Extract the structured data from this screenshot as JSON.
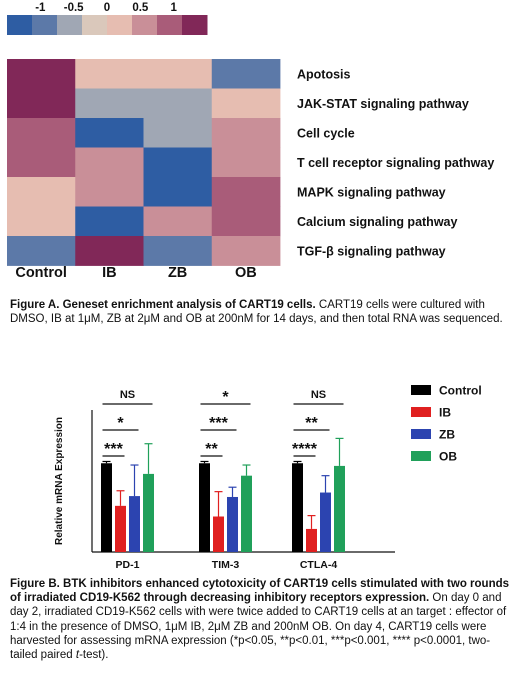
{
  "figure_a": {
    "caption_bold": "Figure A. Geneset enrichment analysis of CART19 cells.",
    "caption_text": " CART19 cells were cultured with DMSO, IB at 1μM, ZB at 2μM and OB at 200nM for 14 days, and then total RNA was sequenced."
  },
  "figure_b": {
    "caption_bold": "Figure B. BTK inhibitors enhanced cytotoxicity of CART19 cells stimulated with two rounds of irradiated CD19-K562 through decreasing inhibitory receptors expression.",
    "caption_text_1": " On day 0 and day 2, irradiated CD19-K562 cells with were twice added to CART19 cells at an target : effector of 1:4 in the presence of DMSO, 1μM IB, 2μM ZB and 200nM OB. On day 4, CART19 cells were harvested for assessing mRNA expression (*p<0.05, **p<0.01, ***p<0.001, **** p<0.0001, two-tailed paired ",
    "caption_italic": "t",
    "caption_text_2": "-test)."
  },
  "chart_data": [
    {
      "type": "heatmap",
      "columns": [
        "Control",
        "IB",
        "ZB",
        "OB"
      ],
      "rows": [
        "Apotosis",
        "JAK-STAT signaling pathway",
        "Cell cycle",
        "T cell receptor signaling pathway",
        "MAPK signaling pathway",
        "Calcium signaling pathway",
        "TGF-β signaling pathway"
      ],
      "values": [
        [
          1.4,
          0.2,
          0.2,
          -1.0
        ],
        [
          1.4,
          -0.5,
          -0.5,
          0.2
        ],
        [
          0.9,
          -1.3,
          -0.5,
          0.7
        ],
        [
          0.9,
          0.4,
          -1.3,
          0.4
        ],
        [
          0.2,
          0.4,
          -1.3,
          0.9
        ],
        [
          0.2,
          -1.3,
          0.7,
          0.9
        ],
        [
          -1.0,
          1.3,
          -1.0,
          0.7
        ]
      ],
      "colorbar": {
        "ticks": [
          "-1",
          "-0.5",
          "0",
          "0.5",
          "1"
        ],
        "colors": [
          "#2e5da3",
          "#5c79a8",
          "#a0a7b4",
          "#dac8bb",
          "#e6bdb1",
          "#c98f98",
          "#a95c79",
          "#812858"
        ],
        "range": [
          -1.5,
          1.5
        ]
      }
    },
    {
      "type": "bar",
      "ylabel": "Relative mRNA Expression",
      "ylim": [
        0,
        1.6
      ],
      "categories": [
        "PD-1",
        "TIM-3",
        "CTLA-4"
      ],
      "series": [
        {
          "name": "Control",
          "color": "#000000",
          "values": [
            1.0,
            1.0,
            1.0
          ],
          "errors": [
            0.02,
            0.02,
            0.02
          ]
        },
        {
          "name": "IB",
          "color": "#e02020",
          "values": [
            0.52,
            0.4,
            0.26
          ],
          "errors": [
            0.17,
            0.28,
            0.15
          ]
        },
        {
          "name": "ZB",
          "color": "#2c44b0",
          "values": [
            0.63,
            0.62,
            0.67
          ],
          "errors": [
            0.35,
            0.11,
            0.19
          ]
        },
        {
          "name": "OB",
          "color": "#20a05a",
          "values": [
            0.88,
            0.86,
            0.97
          ],
          "errors": [
            0.34,
            0.12,
            0.31
          ]
        }
      ],
      "significance": [
        {
          "category": "PD-1",
          "compare": "OB",
          "label": "NS"
        },
        {
          "category": "PD-1",
          "compare": "ZB",
          "label": "*"
        },
        {
          "category": "PD-1",
          "compare": "IB",
          "label": "***"
        },
        {
          "category": "TIM-3",
          "compare": "OB",
          "label": "*"
        },
        {
          "category": "TIM-3",
          "compare": "ZB",
          "label": "***"
        },
        {
          "category": "TIM-3",
          "compare": "IB",
          "label": "**"
        },
        {
          "category": "CTLA-4",
          "compare": "OB",
          "label": "NS"
        },
        {
          "category": "CTLA-4",
          "compare": "ZB",
          "label": "**"
        },
        {
          "category": "CTLA-4",
          "compare": "IB",
          "label": "****"
        }
      ]
    }
  ]
}
